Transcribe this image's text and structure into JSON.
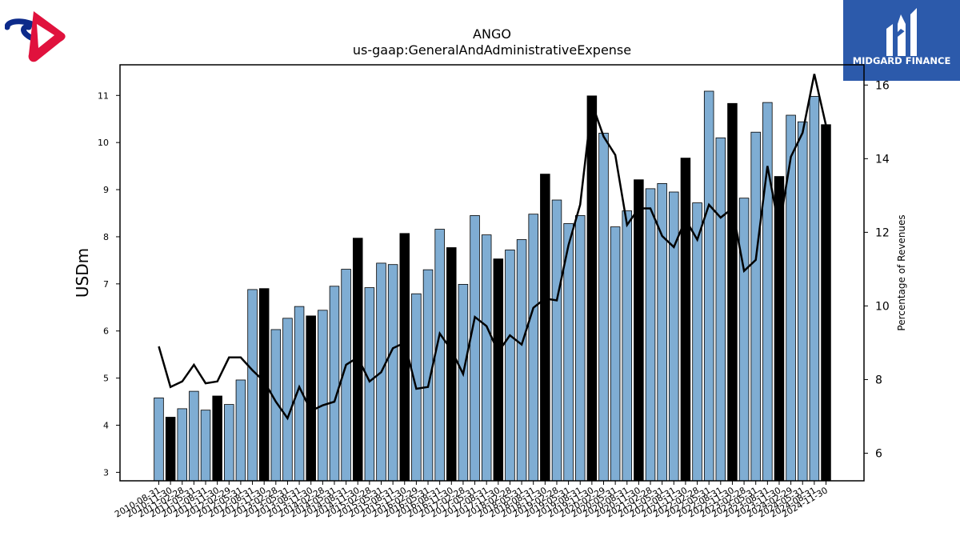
{
  "chart_data": {
    "type": "bar",
    "title": "ANGO",
    "subtitle": "us-gaap:GeneralAndAdministrativeExpense",
    "ylabel": "USDm",
    "y2label": "Percentage of Revenues",
    "ylim": [
      2.82,
      11.65
    ],
    "y2lim": [
      5.25,
      16.55
    ],
    "yticks": [
      3,
      4,
      5,
      6,
      7,
      8,
      9,
      10,
      11
    ],
    "y2ticks": [
      6,
      8,
      10,
      12,
      14,
      16
    ],
    "categories": [
      "2010-08-31",
      "2010-11-30",
      "2011-02-28",
      "2011-05-31",
      "2011-08-31",
      "2011-11-30",
      "2012-02-29",
      "2012-05-31",
      "2012-08-31",
      "2012-11-30",
      "2013-02-28",
      "2013-05-31",
      "2013-08-31",
      "2013-11-30",
      "2014-02-28",
      "2014-05-31",
      "2014-08-31",
      "2014-11-30",
      "2015-02-28",
      "2015-05-31",
      "2015-08-31",
      "2015-11-30",
      "2016-02-29",
      "2016-05-31",
      "2016-08-31",
      "2016-11-30",
      "2017-02-28",
      "2017-05-31",
      "2017-08-31",
      "2017-11-30",
      "2018-02-28",
      "2018-05-31",
      "2018-08-31",
      "2018-11-30",
      "2019-02-28",
      "2019-05-31",
      "2019-08-31",
      "2019-11-30",
      "2020-02-29",
      "2020-05-31",
      "2020-08-31",
      "2020-11-30",
      "2021-02-28",
      "2021-05-31",
      "2021-08-31",
      "2021-11-30",
      "2022-02-28",
      "2022-05-31",
      "2022-08-31",
      "2022-11-30",
      "2023-02-28",
      "2023-05-31",
      "2023-08-31",
      "2023-11-30",
      "2024-02-29",
      "2024-05-31",
      "2024-08-31",
      "2024-11-30"
    ],
    "series": [
      {
        "kind": "bar",
        "axis": "left",
        "values": [
          4.58,
          4.17,
          4.35,
          4.72,
          4.32,
          4.62,
          4.44,
          4.96,
          6.88,
          6.9,
          6.03,
          6.27,
          6.52,
          6.32,
          6.44,
          6.95,
          7.31,
          7.97,
          6.92,
          7.44,
          7.41,
          8.07,
          6.79,
          7.3,
          8.16,
          7.77,
          6.99,
          8.45,
          8.04,
          7.53,
          7.72,
          7.94,
          8.48,
          9.33,
          8.78,
          8.28,
          8.45,
          10.99,
          10.2,
          8.21,
          8.55,
          9.21,
          9.02,
          9.13,
          8.95,
          9.67,
          8.72,
          11.09,
          10.1,
          10.83,
          8.82,
          10.22,
          10.85,
          9.28,
          10.58,
          10.44,
          10.98,
          10.38
        ],
        "highlight": [
          false,
          true,
          false,
          false,
          false,
          true,
          false,
          false,
          false,
          true,
          false,
          false,
          false,
          true,
          false,
          false,
          false,
          true,
          false,
          false,
          false,
          true,
          false,
          false,
          false,
          true,
          false,
          false,
          false,
          true,
          false,
          false,
          false,
          true,
          false,
          false,
          false,
          true,
          false,
          false,
          false,
          true,
          false,
          false,
          false,
          true,
          false,
          false,
          false,
          true,
          false,
          false,
          false,
          true,
          false,
          false,
          false,
          true
        ]
      },
      {
        "kind": "line",
        "axis": "right",
        "values": [
          8.9,
          7.8,
          7.95,
          8.4,
          7.9,
          7.95,
          8.6,
          8.6,
          8.25,
          7.95,
          7.4,
          6.95,
          7.8,
          7.15,
          7.3,
          7.4,
          8.4,
          8.6,
          7.95,
          8.2,
          8.85,
          9.0,
          7.75,
          7.8,
          9.25,
          8.8,
          8.15,
          9.7,
          9.45,
          8.75,
          9.2,
          8.95,
          9.95,
          10.2,
          10.15,
          11.65,
          12.75,
          15.5,
          14.6,
          14.1,
          12.2,
          12.65,
          12.65,
          11.9,
          11.6,
          12.35,
          11.8,
          12.75,
          12.4,
          12.65,
          10.95,
          11.25,
          13.8,
          12.1,
          14.05,
          14.7,
          16.3,
          14.9
        ]
      }
    ],
    "grid": false,
    "legend": "none",
    "colors": {
      "bar": "#7fadd3",
      "bar_highlight": "#000000",
      "line": "#000000"
    }
  },
  "logos": {
    "right_text": "MIDGARD FINANCE"
  },
  "colors": {
    "logo_red": "#e0123d",
    "logo_blue": "#0c2a8a",
    "logo_right_bg": "#2c5aab"
  }
}
